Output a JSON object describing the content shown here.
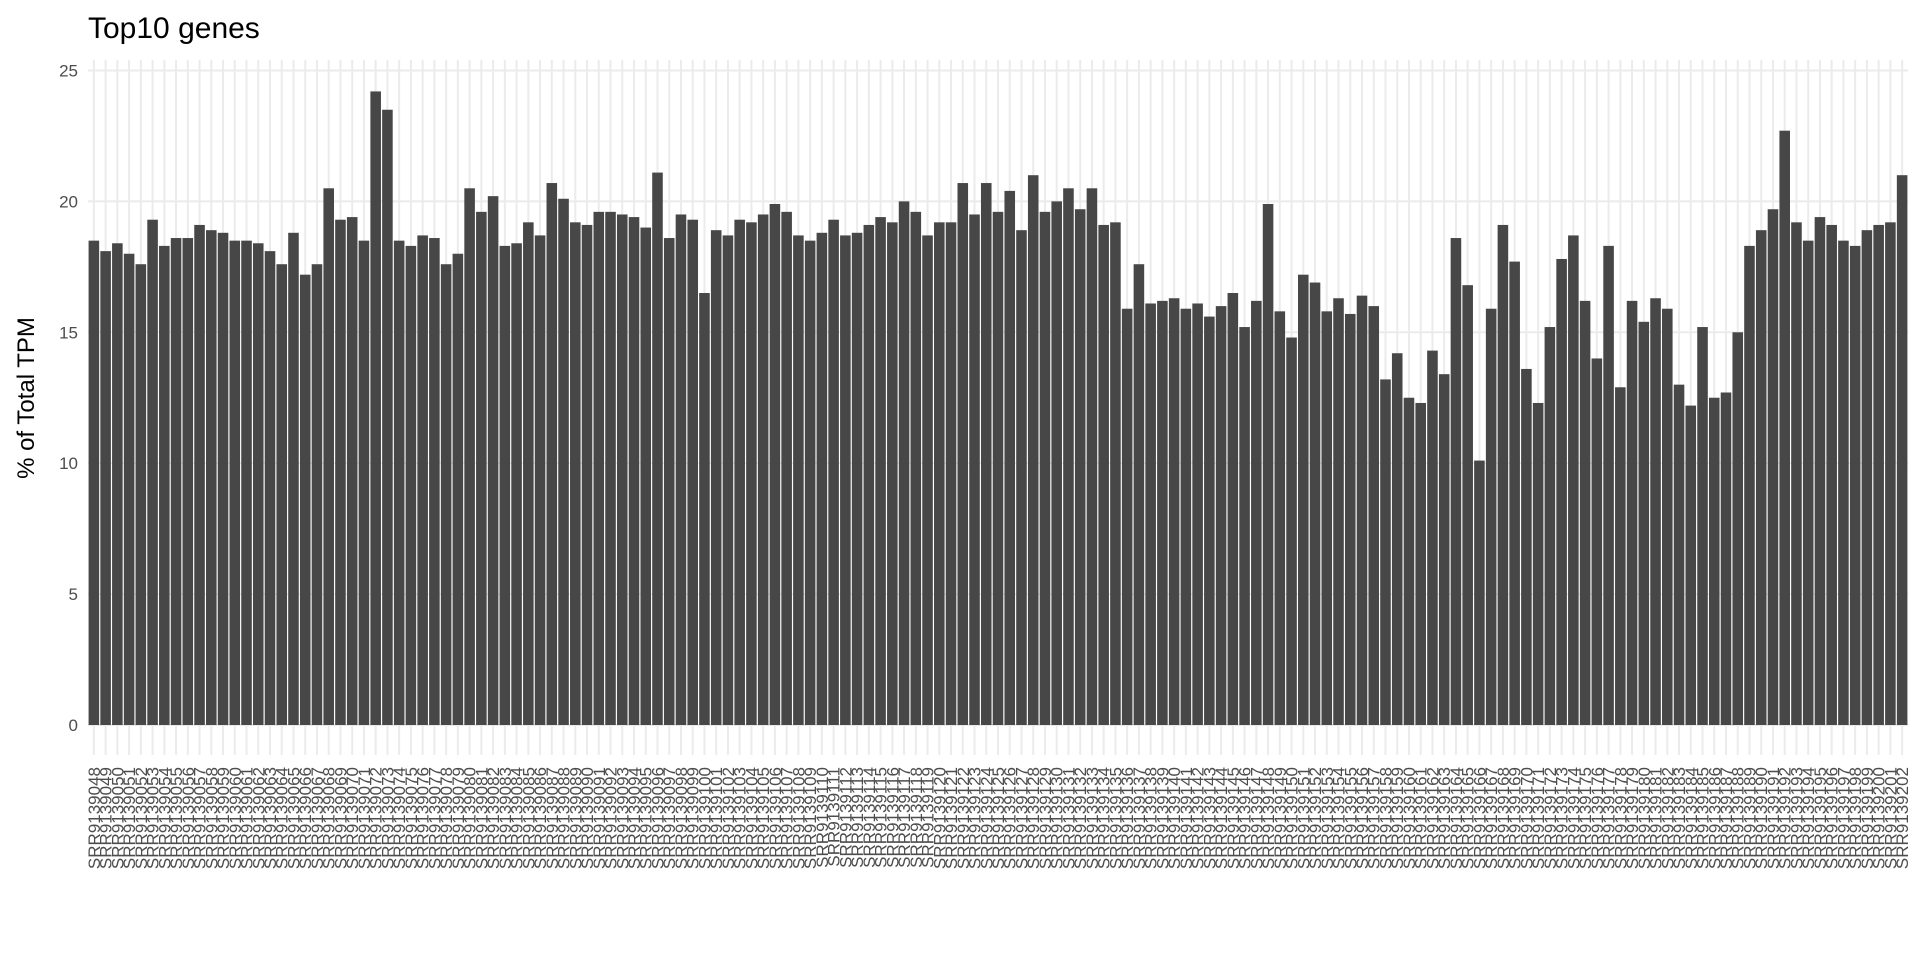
{
  "chart_data": {
    "type": "bar",
    "title": "Top10 genes",
    "y_label": "% of Total TPM",
    "categories": [
      "SRR9139048",
      "SRR9139049",
      "SRR9139050",
      "SRR9139051",
      "SRR9139052",
      "SRR9139053",
      "SRR9139054",
      "SRR9139055",
      "SRR9139056",
      "SRR9139057",
      "SRR9139058",
      "SRR9139059",
      "SRR9139060",
      "SRR9139061",
      "SRR9139062",
      "SRR9139063",
      "SRR9139064",
      "SRR9139065",
      "SRR9139066",
      "SRR9139067",
      "SRR9139068",
      "SRR9139069",
      "SRR9139070",
      "SRR9139071",
      "SRR9139072",
      "SRR9139073",
      "SRR9139074",
      "SRR9139075",
      "SRR9139076",
      "SRR9139077",
      "SRR9139078",
      "SRR9139079",
      "SRR9139080",
      "SRR9139081",
      "SRR9139082",
      "SRR9139083",
      "SRR9139084",
      "SRR9139085",
      "SRR9139086",
      "SRR9139087",
      "SRR9139088",
      "SRR9139089",
      "SRR9139090",
      "SRR9139091",
      "SRR9139092",
      "SRR9139093",
      "SRR9139094",
      "SRR9139095",
      "SRR9139096",
      "SRR9139097",
      "SRR9139098",
      "SRR9139099",
      "SRR9139100",
      "SRR9139101",
      "SRR9139102",
      "SRR9139103",
      "SRR9139104",
      "SRR9139105",
      "SRR9139106",
      "SRR9139107",
      "SRR9139108",
      "SRR9139109",
      "SRR9139110",
      "SRR9139111",
      "SRR9139112",
      "SRR9139113",
      "SRR9139114",
      "SRR9139115",
      "SRR9139116",
      "SRR9139117",
      "SRR9139118",
      "SRR9139119",
      "SRR9139120",
      "SRR9139121",
      "SRR9139122",
      "SRR9139123",
      "SRR9139124",
      "SRR9139125",
      "SRR9139126",
      "SRR9139127",
      "SRR9139128",
      "SRR9139129",
      "SRR9139130",
      "SRR9139131",
      "SRR9139132",
      "SRR9139133",
      "SRR9139134",
      "SRR9139135",
      "SRR9139136",
      "SRR9139137",
      "SRR9139138",
      "SRR9139139",
      "SRR9139140",
      "SRR9139141",
      "SRR9139142",
      "SRR9139143",
      "SRR9139144",
      "SRR9139145",
      "SRR9139146",
      "SRR9139147",
      "SRR9139148",
      "SRR9139149",
      "SRR9139150",
      "SRR9139151",
      "SRR9139152",
      "SRR9139153",
      "SRR9139154",
      "SRR9139155",
      "SRR9139156",
      "SRR9139157",
      "SRR9139158",
      "SRR9139159",
      "SRR9139160",
      "SRR9139161",
      "SRR9139162",
      "SRR9139163",
      "SRR9139164",
      "SRR9139165",
      "SRR9139166",
      "SRR9139167",
      "SRR9139168",
      "SRR9139169",
      "SRR9139170",
      "SRR9139171",
      "SRR9139172",
      "SRR9139173",
      "SRR9139174",
      "SRR9139175",
      "SRR9139176",
      "SRR9139177",
      "SRR9139178",
      "SRR9139179",
      "SRR9139180",
      "SRR9139181",
      "SRR9139182",
      "SRR9139183",
      "SRR9139184",
      "SRR9139185",
      "SRR9139186",
      "SRR9139187",
      "SRR9139188",
      "SRR9139189",
      "SRR9139190",
      "SRR9139191",
      "SRR9139192",
      "SRR9139193",
      "SRR9139194",
      "SRR9139195",
      "SRR9139196",
      "SRR9139197",
      "SRR9139198",
      "SRR9139199",
      "SRR9139200",
      "SRR9139201",
      "SRR9139202"
    ],
    "values": [
      18.5,
      18.1,
      18.4,
      18.0,
      17.6,
      19.3,
      18.3,
      18.6,
      18.6,
      19.1,
      18.9,
      18.8,
      18.5,
      18.5,
      18.4,
      18.1,
      17.6,
      18.8,
      17.2,
      17.6,
      20.5,
      19.3,
      19.4,
      18.5,
      24.2,
      23.5,
      18.5,
      18.3,
      18.7,
      18.6,
      17.6,
      18.0,
      20.5,
      19.6,
      20.2,
      18.3,
      18.4,
      19.2,
      18.7,
      20.7,
      20.1,
      19.2,
      19.1,
      19.6,
      19.6,
      19.5,
      19.4,
      19.0,
      21.1,
      18.6,
      19.5,
      19.3,
      16.5,
      18.9,
      18.7,
      19.3,
      19.2,
      19.5,
      19.9,
      19.6,
      18.7,
      18.5,
      18.8,
      19.3,
      18.7,
      18.8,
      19.1,
      19.4,
      19.2,
      20.0,
      19.6,
      18.7,
      19.2,
      19.2,
      20.7,
      19.5,
      20.7,
      19.6,
      20.4,
      18.9,
      21.0,
      19.6,
      20.0,
      20.5,
      19.7,
      20.5,
      19.1,
      19.2,
      15.9,
      17.6,
      16.1,
      16.2,
      16.3,
      15.9,
      16.1,
      15.6,
      16.0,
      16.5,
      15.2,
      16.2,
      19.9,
      15.8,
      14.8,
      17.2,
      16.9,
      15.8,
      16.3,
      15.7,
      16.4,
      16.0,
      13.2,
      14.2,
      12.5,
      12.3,
      14.3,
      13.4,
      18.6,
      16.8,
      10.1,
      15.9,
      19.1,
      17.7,
      13.6,
      12.3,
      15.2,
      17.8,
      18.7,
      16.2,
      14.0,
      18.3,
      12.9,
      16.2,
      15.4,
      16.3,
      15.9,
      13.0,
      12.2,
      15.2,
      12.5,
      12.7,
      15.0,
      18.3,
      18.9,
      19.7,
      22.7,
      19.2,
      18.5,
      19.4,
      19.1,
      18.5,
      18.3,
      18.9,
      19.1,
      19.2,
      21.0
    ],
    "color": "#474747",
    "ylim": [
      0,
      25.4
    ],
    "yticks": [
      0,
      5,
      10,
      15,
      20,
      25
    ],
    "grid": true
  }
}
